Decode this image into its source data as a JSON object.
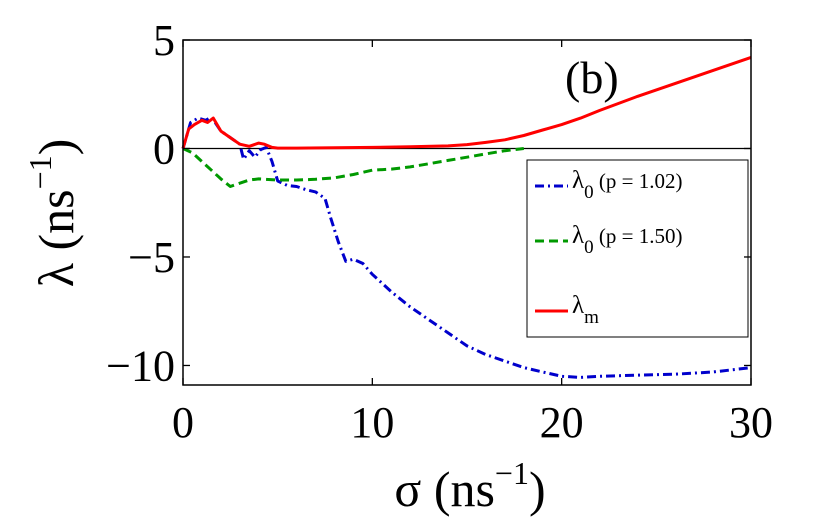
{
  "chart_data": {
    "type": "line",
    "panel_label": "(b)",
    "xlabel": "σ (ns",
    "xlabel_sup": "−1",
    "xlabel_close": ")",
    "ylabel": "λ (ns",
    "ylabel_sup": "−1",
    "ylabel_close": ")",
    "xlim": [
      0,
      30
    ],
    "ylim": [
      -10.9,
      5
    ],
    "xticks": [
      0,
      10,
      20,
      30
    ],
    "xtick_labels": [
      "0",
      "10",
      "20",
      "30"
    ],
    "yticks": [
      5,
      0,
      -5,
      -10
    ],
    "ytick_labels": [
      "5",
      "0",
      "−5",
      "−10"
    ],
    "zero_line": true,
    "grid": false,
    "legend_position": "right",
    "series": [
      {
        "name": "λ0 (p = 1.02)",
        "legend_main": "λ",
        "legend_sub": "0",
        "legend_rest": " (p = 1.02)",
        "color": "#0000cc",
        "style": "dashdot",
        "x": [
          0,
          0.4,
          0.8,
          1.2,
          1.5,
          2.0,
          2.5,
          3.0,
          3.2,
          3.5,
          3.8,
          4.1,
          4.4,
          4.7,
          5.0,
          5.5,
          6.0,
          6.5,
          7.0,
          7.5,
          7.8,
          8.2,
          8.6,
          9.0,
          9.5,
          10.0,
          11.0,
          12.0,
          13.0,
          14.0,
          15.0,
          16.0,
          17.0,
          18.0,
          19.0,
          20.0,
          21.0,
          22.0,
          24.0,
          26.0,
          28.0,
          29.0,
          30.0
        ],
        "y": [
          0,
          1.2,
          1.4,
          1.3,
          1.45,
          0.8,
          0.5,
          0.2,
          -0.5,
          -0.1,
          -0.4,
          -0.05,
          0.05,
          -0.6,
          -1.5,
          -1.7,
          -1.75,
          -1.9,
          -2.0,
          -2.3,
          -3.2,
          -4.3,
          -5.2,
          -5.1,
          -5.3,
          -5.8,
          -6.6,
          -7.3,
          -7.9,
          -8.5,
          -9.1,
          -9.5,
          -9.8,
          -10.1,
          -10.3,
          -10.5,
          -10.55,
          -10.5,
          -10.45,
          -10.4,
          -10.3,
          -10.2,
          -10.1
        ]
      },
      {
        "name": "λ0 (p = 1.50)",
        "legend_main": "λ",
        "legend_sub": "0",
        "legend_rest": " (p = 1.50)",
        "color": "#009900",
        "style": "dashed",
        "x": [
          0,
          0.5,
          1.0,
          1.5,
          2.0,
          2.5,
          3.0,
          3.5,
          4.0,
          5.0,
          6.0,
          7.0,
          8.0,
          9.0,
          10.0,
          11.0,
          12.0,
          13.0,
          14.0,
          15.0,
          16.0,
          17.0,
          18.0
        ],
        "y": [
          0,
          -0.2,
          -0.6,
          -1.0,
          -1.4,
          -1.75,
          -1.6,
          -1.45,
          -1.4,
          -1.45,
          -1.45,
          -1.42,
          -1.35,
          -1.2,
          -1.0,
          -0.95,
          -0.85,
          -0.7,
          -0.55,
          -0.4,
          -0.25,
          -0.1,
          0.0
        ]
      },
      {
        "name": "λm",
        "legend_main": "λ",
        "legend_sub": "m",
        "legend_rest": "",
        "color": "#ff0000",
        "style": "solid",
        "x": [
          0,
          0.3,
          0.6,
          1.0,
          1.3,
          1.6,
          2.0,
          2.5,
          3.0,
          3.5,
          4.0,
          4.3,
          4.7,
          5.0,
          6.0,
          8.0,
          10.0,
          12.0,
          14.0,
          15.0,
          16.0,
          17.0,
          18.0,
          19.0,
          20.0,
          21.0,
          22.0,
          24.0,
          26.0,
          28.0,
          30.0
        ],
        "y": [
          0,
          0.9,
          1.1,
          1.3,
          1.2,
          1.4,
          0.8,
          0.5,
          0.2,
          0.1,
          0.25,
          0.2,
          0.05,
          0.02,
          0.02,
          0.03,
          0.05,
          0.08,
          0.12,
          0.18,
          0.28,
          0.4,
          0.6,
          0.85,
          1.1,
          1.4,
          1.75,
          2.4,
          3.0,
          3.6,
          4.2
        ]
      }
    ]
  }
}
